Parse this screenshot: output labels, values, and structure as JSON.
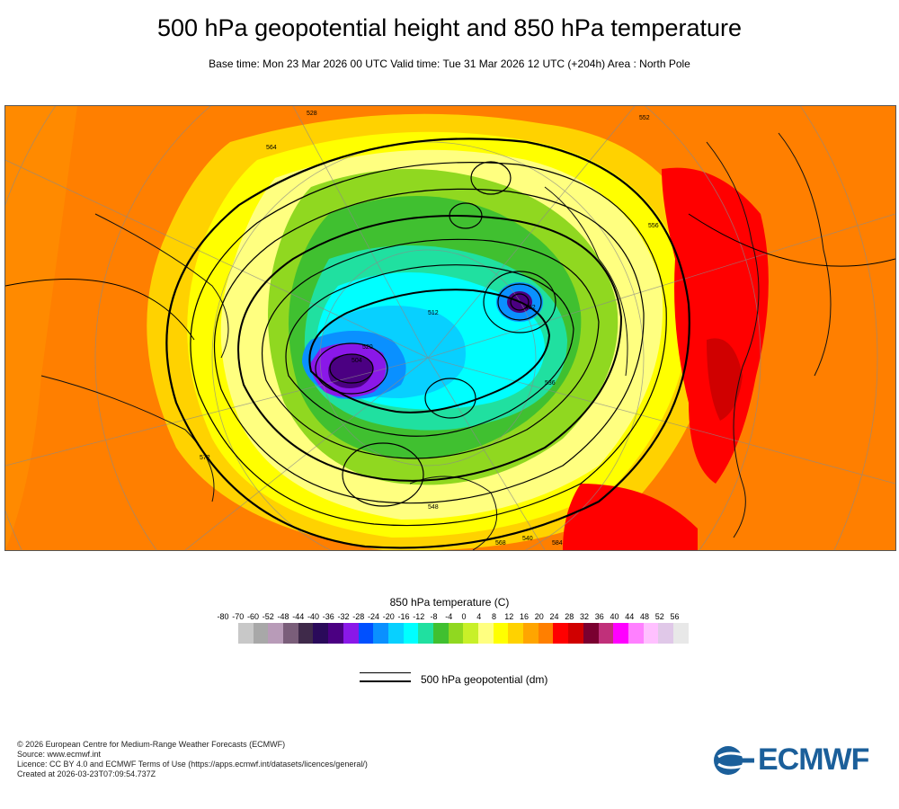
{
  "title": "500 hPa geopotential height and 850 hPa temperature",
  "subtitle": "Base time: Mon 23 Mar 2026 00 UTC Valid time: Tue 31 Mar 2026 12 UTC (+204h) Area : North Pole",
  "legend": {
    "title": "850 hPa temperature (C)",
    "ticks": [
      "-80",
      "-70",
      "-60",
      "-52",
      "-48",
      "-44",
      "-40",
      "-36",
      "-32",
      "-28",
      "-24",
      "-20",
      "-16",
      "-12",
      "-8",
      "-4",
      "0",
      "4",
      "8",
      "12",
      "16",
      "20",
      "24",
      "28",
      "32",
      "36",
      "40",
      "44",
      "48",
      "52",
      "56"
    ],
    "colors": [
      "#e4e4e4",
      "#c8c8c8",
      "#a8a8a8",
      "#b89bb8",
      "#7a5e7a",
      "#3f2a4a",
      "#2a0a5a",
      "#4b0082",
      "#8a18e8",
      "#0050ff",
      "#0a90ff",
      "#08d0ff",
      "#00ffff",
      "#20e0a0",
      "#40c030",
      "#90d820",
      "#c8f028",
      "#ffff80",
      "#ffff00",
      "#ffd200",
      "#ffa500",
      "#ff7f00",
      "#ff0000",
      "#d00000",
      "#7a0030",
      "#c0307a",
      "#ff00ff",
      "#ff80ff",
      "#ffc0ff",
      "#e0c8e8",
      "#e8e8e8"
    ]
  },
  "contour_key": {
    "label": "500 hPa geopotential (dm)"
  },
  "map_labels": [
    "528",
    "552",
    "556",
    "564",
    "568",
    "536",
    "572",
    "520",
    "512",
    "504",
    "492",
    "548",
    "540",
    "584"
  ],
  "footer": {
    "copyright": "© 2026 European Centre for Medium-Range Weather Forecasts (ECMWF)",
    "source": "Source: www.ecmwf.int",
    "licence": "Licence: CC BY 4.0 and ECMWF Terms of Use (https://apps.ecmwf.int/datasets/licences/general/)",
    "created": "Created at 2026-03-23T07:09:54.737Z"
  },
  "logo": {
    "text": "ECMWF",
    "color": "#1b5f9a"
  }
}
